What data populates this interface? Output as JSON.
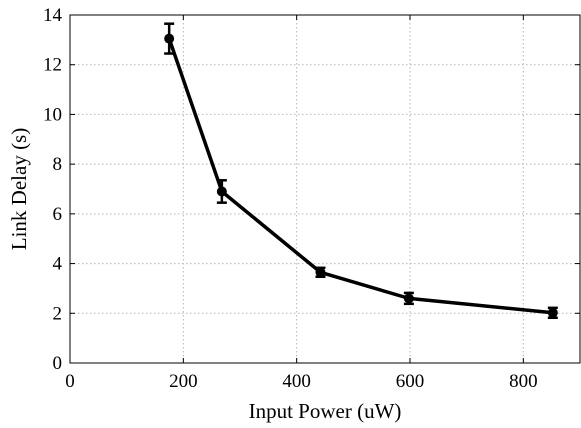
{
  "chart_data": {
    "type": "line",
    "xlabel": "Input Power (uW)",
    "ylabel": "Link Delay (s)",
    "xlim": [
      0,
      900
    ],
    "ylim": [
      0,
      14
    ],
    "xticks": [
      0,
      200,
      400,
      600,
      800
    ],
    "yticks": [
      0,
      2,
      4,
      6,
      8,
      10,
      12,
      14
    ],
    "grid": true,
    "legend": "none",
    "line_color": "#000000",
    "series": [
      {
        "x": [
          175,
          268,
          442,
          598,
          852
        ],
        "y": [
          13.05,
          6.9,
          3.65,
          2.6,
          2.02
        ],
        "error": [
          0.6,
          0.45,
          0.18,
          0.22,
          0.2
        ]
      }
    ]
  }
}
